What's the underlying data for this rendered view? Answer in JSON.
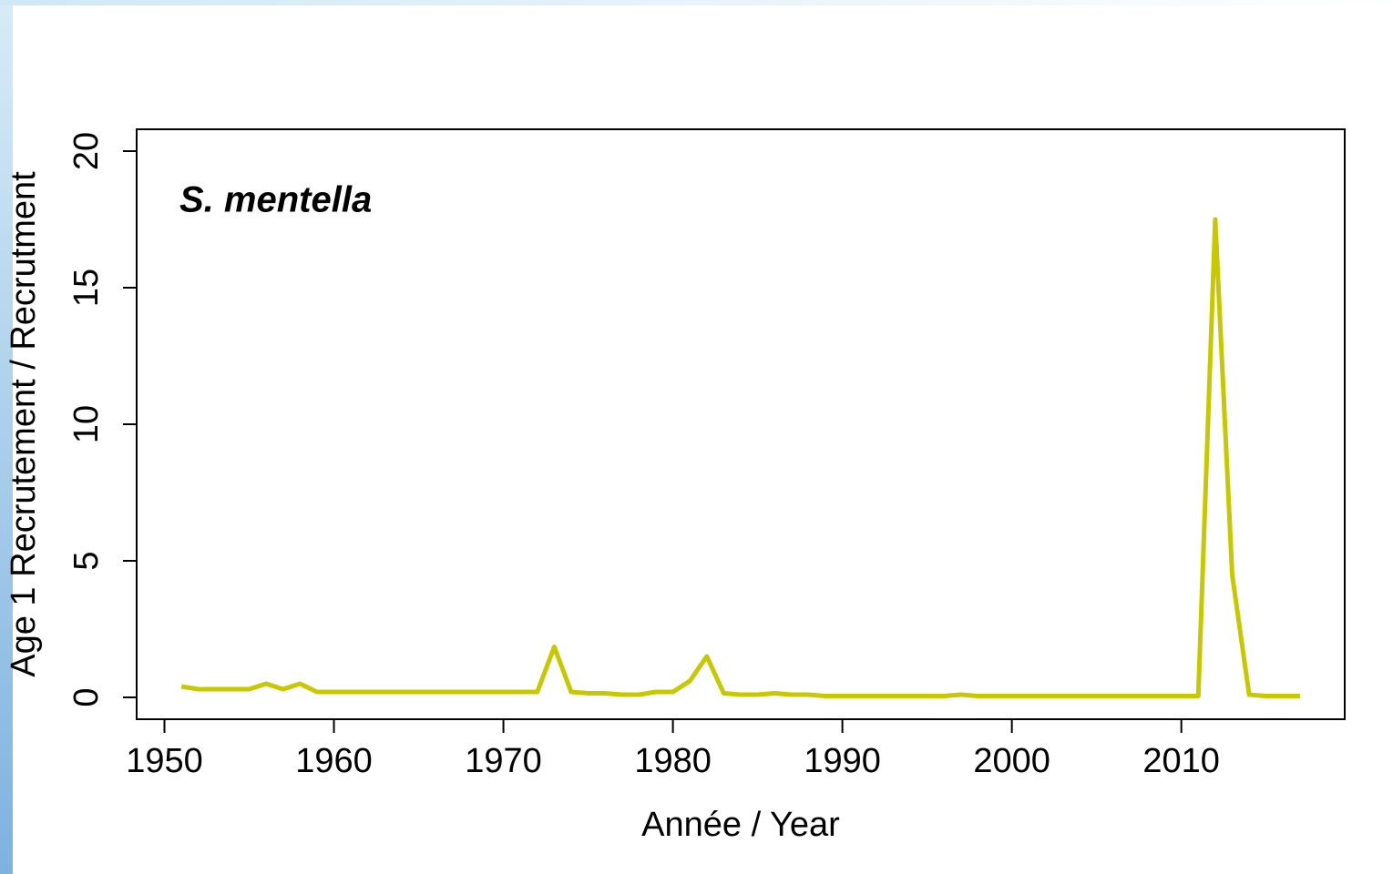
{
  "chart_data": {
    "type": "line",
    "annotation": "S. mentella",
    "xlabel": "Année / Year",
    "ylabel": "Age 1 Recrutement / Recrutment",
    "x": [
      1951,
      1952,
      1953,
      1954,
      1955,
      1956,
      1957,
      1958,
      1959,
      1960,
      1961,
      1962,
      1963,
      1964,
      1965,
      1966,
      1967,
      1968,
      1969,
      1970,
      1971,
      1972,
      1973,
      1974,
      1975,
      1976,
      1977,
      1978,
      1979,
      1980,
      1981,
      1982,
      1983,
      1984,
      1985,
      1986,
      1987,
      1988,
      1989,
      1990,
      1991,
      1992,
      1993,
      1994,
      1995,
      1996,
      1997,
      1998,
      1999,
      2000,
      2001,
      2002,
      2003,
      2004,
      2005,
      2006,
      2007,
      2008,
      2009,
      2010,
      2011,
      2012,
      2013,
      2014,
      2015,
      2016,
      2017
    ],
    "series": [
      {
        "color": "#c8c800",
        "values": [
          0.4,
          0.3,
          0.3,
          0.3,
          0.3,
          0.5,
          0.3,
          0.5,
          0.2,
          0.2,
          0.2,
          0.2,
          0.2,
          0.2,
          0.2,
          0.2,
          0.2,
          0.2,
          0.2,
          0.2,
          0.2,
          0.2,
          1.85,
          0.2,
          0.15,
          0.15,
          0.1,
          0.1,
          0.2,
          0.2,
          0.6,
          1.5,
          0.15,
          0.1,
          0.1,
          0.15,
          0.1,
          0.1,
          0.05,
          0.05,
          0.05,
          0.05,
          0.05,
          0.05,
          0.05,
          0.05,
          0.1,
          0.05,
          0.05,
          0.05,
          0.05,
          0.05,
          0.05,
          0.05,
          0.05,
          0.05,
          0.05,
          0.05,
          0.05,
          0.05,
          0.05,
          17.5,
          4.5,
          0.1,
          0.05,
          0.05,
          0.05
        ]
      }
    ],
    "xlim": [
      1948.36,
      2019.64
    ],
    "ylim": [
      -0.8,
      20.8
    ],
    "xticks": [
      1950,
      1960,
      1970,
      1980,
      1990,
      2000,
      2010
    ],
    "yticks": [
      0,
      5,
      10,
      15,
      20
    ],
    "grid": false
  }
}
